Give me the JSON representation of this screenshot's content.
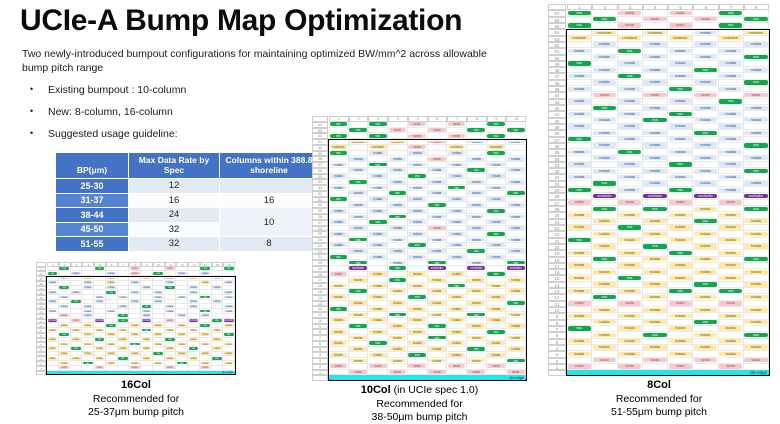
{
  "title": "UCIe-A Bump Map Optimization",
  "intro": "Two newly-introduced bumpout configurations for maintaining optimized BW/mm^2 across allowable bump pitch range",
  "bullets": [
    "Existing bumpout : 10-column",
    "New: 8-column, 16-column",
    "Suggested usage guideline:"
  ],
  "table": {
    "col1_header": "BP(μm)",
    "col2_header": "Max Data Rate by Spec",
    "col3_header": "Columns within 388.8 shoreline",
    "rows": [
      {
        "bp": "25-30",
        "rate": "12"
      },
      {
        "bp": "31-37",
        "rate": "16"
      },
      {
        "bp": "38-44",
        "rate": "24"
      },
      {
        "bp": "45-50",
        "rate": "32"
      },
      {
        "bp": "51-55",
        "rate": "32"
      }
    ],
    "col3": {
      "v16": "16",
      "v10": "10",
      "v8": "8"
    }
  },
  "legend": {
    "G": "vss",
    "P": "vccio",
    "B": "rxdata",
    "Y": "txdata",
    "V": "vccfwdio",
    "T": "rxdatasb"
  },
  "colors": {
    "accent_blue": "#4472C4",
    "vss_green": "#10A84F",
    "vccio_pink": "#F6C9CF",
    "rxdata_blue": "#DCE8F6",
    "txdata_yellow": "#FFE9A3",
    "vccfwdio_purple": "#7030A0",
    "die_edge_cyan": "#22E6EE"
  },
  "grids": {
    "g16": {
      "cols": 16,
      "row_start": 22,
      "outer": 2,
      "die_edge": "die edge",
      "caption_bold": "16Col",
      "caption_note": "",
      "rec": "Recommended for",
      "pitch": "25-37μm bump pitch",
      "rows": [
        "WGWWGWWPWWPWWGWG",
        "GWBWWBWPWGWBWBWW",
        "WBWYWBWWYWBWYWBW",
        "BWWBWYWBWWBWWYWB",
        "WGWBWBWWBWGWBWBW",
        "BWBWWGWBWBWWBWWB",
        "WBWWBWBWWBWBWGWB",
        "BWGWBWWBWBWWBWBW",
        "WBWBWWBWGWBWBWWB",
        "BWWBWBWWBWBWWGWB",
        "WPWBWWGWBWWBWBWW",
        "VWPWVWGWVWPWVWGV",
        "WYWYWGWYWYWYWGWY",
        "YWYWYWYWGWYWYWYW",
        "WGWYWYWYWYWYWYWG",
        "YWYWGWYWYWGWYWYW",
        "WYWYWYWGWYWYWYWY",
        "YWGWYWYWYWYWGWYW",
        "WYWYWYWYWGWYWYWY",
        "YWYWYWGWYWYWYWGW",
        "WYWGWYWYWYWGWYWY",
        "WPWWPWWPWWPWWPWW"
      ]
    },
    "g10": {
      "cols": 10,
      "row_start": 44,
      "outer": 3,
      "die_edge": "die edge",
      "caption_bold": "10Col",
      "caption_note": " (in UCIe spec 1.0)",
      "rec": "Recommended for",
      "pitch": "38-50μm bump pitch",
      "rows": [
        "GWGWPWPWGW",
        "WGWPWPWGWG",
        "GWGWPWPWGW",
        "WTWTWPWBWB",
        "TWTWPWTWTW",
        "GWBWBWBWGW",
        "WBWBWPWBWB",
        "BWGWBWBWBW",
        "WBWBWBWGWB",
        "BWBWGWBWBW",
        "WGWBWBWBWB",
        "BWBWBWGWBW",
        "WBWGWBWBWG",
        "GWBWBWBWBW",
        "WBWBWGWBWB",
        "BWBWBWBWGW",
        "WBWGWBWBWB",
        "BWGWBWBWBW",
        "WBWBWPWBWB",
        "BWBWBWBWGW",
        "WGWBWBWBWB",
        "BWBWGWBWBW",
        "WBWBWBWGWB",
        "GWBWBWBWBW",
        "WGWBWGWBWG",
        "WVWGWVWVWV",
        "PWYWYWYWGW",
        "WYWGWYWYWY",
        "YWYWYWGWYW",
        "WGWYWYWYWY",
        "YWYWGWYWYW",
        "WYWYWYWYWG",
        "GWYWYWYWYW",
        "WYWGWYWGWY",
        "YWYWYWYWYW",
        "WGWYWGWYWY",
        "YWYWYWYWGW",
        "WYWYWGWYWY",
        "YWGWYWYWYW",
        "WYWYWYWGWY",
        "YWYWGWYWYW",
        "WYWYWYWYWG",
        "PWPWPWPWPW",
        "WPWPWPWPWP"
      ]
    },
    "g8": {
      "cols": 8,
      "row_start": 57,
      "outer": 3,
      "die_edge": "die edge",
      "caption_bold": "8Col",
      "caption_note": "",
      "rec": "Recommended for",
      "pitch": "51-55μm bump pitch",
      "rows": [
        "GWPWPWGW",
        "WGWPWPWG",
        "GWPWPWGW",
        "WTWTWBWT",
        "TWTWTWTW",
        "WBWBWBWB",
        "BWGWBWBW",
        "WBWBWBWG",
        "GWBWBWBW",
        "WBWBWGWB",
        "BWGWBWBW",
        "WBWBWBWG",
        "BWBWGWBW",
        "WPWPWPWP",
        "BWBWBWGW",
        "WGWBWBWB",
        "BWBWGWBW",
        "WBWGWBWB",
        "BWBWBWBW",
        "WBWBWGWB",
        "GWBWBWBW",
        "WBWBWBWG",
        "BWGWBWBW",
        "WBWBWBWB",
        "BWBWGWBW",
        "WBWBWBWG",
        "BWBWBWBW",
        "WGWBWBWB",
        "GWBWGWBW",
        "WVWVWVWV",
        "PWPWPWPW",
        "WGWGWYWG",
        "YWYWYWYW",
        "WYWYWGWY",
        "YWGWYWYW",
        "WYWYWYWY",
        "GWYWYWYW",
        "WYWGWYWY",
        "YWYWGWYW",
        "WGWYWYWG",
        "YWYWYWYW",
        "WYWYWYWY",
        "YWGWYWYW",
        "WYWYWGWY",
        "YWYWGWGW",
        "WGWYWYWY",
        "PWPWPWPW",
        "WYWYWYWY",
        "YWYWYWYW",
        "WYWYWGWY",
        "GWYWYWYW",
        "WYWGWYWG",
        "YWYWYWYW",
        "WYWYWYWY",
        "YWYWYWYW",
        "WPWPWPWP",
        "PWPWPWPW"
      ]
    }
  }
}
